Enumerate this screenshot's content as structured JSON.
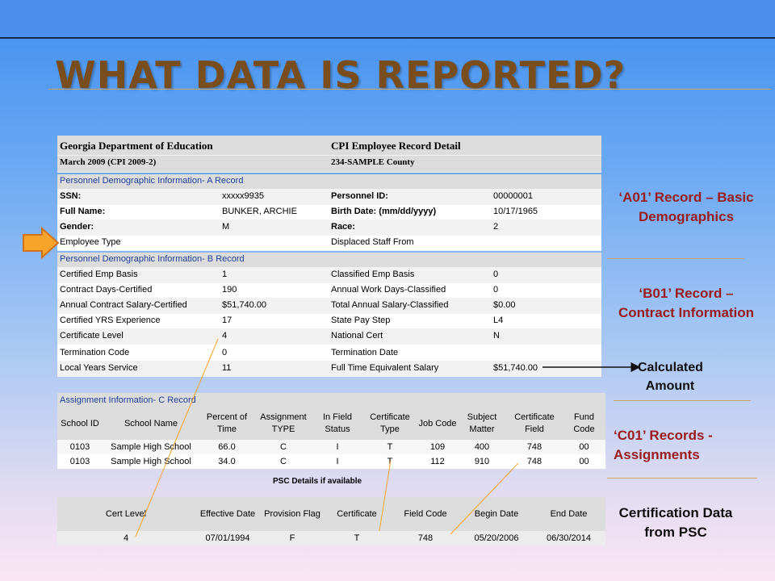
{
  "slide": {
    "title": "WHAT DATA IS REPORTED?"
  },
  "record": {
    "header": {
      "org": "Georgia Department of Education",
      "doc": "CPI Employee Record Detail",
      "period": "March 2009 (CPI 2009-2)",
      "county": "234-SAMPLE County"
    },
    "section_a": "Personnel Demographic Information- A Record",
    "a_rows": [
      {
        "l1": "SSN:",
        "v1": "xxxxx9935",
        "l2": "Personnel ID:",
        "v2": "00000001"
      },
      {
        "l1": "Full Name:",
        "v1": "BUNKER, ARCHIE",
        "l2": "Birth Date: (mm/dd/yyyy)",
        "v2": "10/17/1965"
      },
      {
        "l1": "Gender:",
        "v1": "M",
        "l2": "Race:",
        "v2": "2"
      },
      {
        "l1": "Employee Type",
        "v1": "",
        "l2": "Displaced Staff From",
        "v2": ""
      }
    ],
    "section_b": "Personnel Demographic Information- B Record",
    "b_rows": [
      {
        "l1": "Certified Emp Basis",
        "v1": "1",
        "l2": "Classified Emp Basis",
        "v2": "0"
      },
      {
        "l1": "Contract Days-Certified",
        "v1": "190",
        "l2": "Annual Work Days-Classified",
        "v2": "0"
      },
      {
        "l1": "Annual Contract Salary-Certified",
        "v1": "$51,740.00",
        "l2": "Total Annual Salary-Classified",
        "v2": "$0.00"
      },
      {
        "l1": "Certified YRS Experience",
        "v1": "17",
        "l2": "State Pay Step",
        "v2": "L4"
      },
      {
        "l1": "Certificate Level",
        "v1": "4",
        "l2": "National Cert",
        "v2": "N"
      },
      {
        "l1": "Termination Code",
        "v1": "0",
        "l2": "Termination Date",
        "v2": ""
      },
      {
        "l1": "Local Years Service",
        "v1": "11",
        "l2": "Full Time Equivalent Salary",
        "v2": "$51,740.00"
      }
    ]
  },
  "assignments": {
    "caption": "Assignment Information- C Record",
    "columns": [
      "School ID",
      "School Name",
      "Percent of Time",
      "Assignment TYPE",
      "In Field Status",
      "Certificate Type",
      "Job Code",
      "Subject Matter",
      "Certificate Field",
      "Fund Code"
    ],
    "rows": [
      [
        "0103",
        "Sample High School",
        "66.0",
        "C",
        "I",
        "T",
        "109",
        "400",
        "748",
        "00"
      ],
      [
        "0103",
        "Sample High School",
        "34.0",
        "C",
        "I",
        "T",
        "112",
        "910",
        "748",
        "00"
      ]
    ]
  },
  "psc": {
    "caption": "PSC Details if available",
    "columns": [
      "Cert Level",
      "Effective Date",
      "Provision Flag",
      "Certificate",
      "Field Code",
      "Begin Date",
      "End Date"
    ],
    "rows": [
      [
        "4",
        "07/01/1994",
        "F",
        "T",
        "748",
        "05/20/2006",
        "06/30/2014"
      ]
    ]
  },
  "labels": {
    "a01": "‘A01’ Record – Basic Demographics",
    "b01": "‘B01’ Record – Contract Information",
    "calc": "Calculated Amount",
    "c01": "‘C01’ Records - Assignments",
    "cert": "Certification Data from PSC"
  },
  "colors": {
    "title": "#7a4e1c",
    "label_red": "#9a1c1c",
    "section_blue": "#1f3f9a",
    "arrow_orange": "#f7a52a"
  }
}
